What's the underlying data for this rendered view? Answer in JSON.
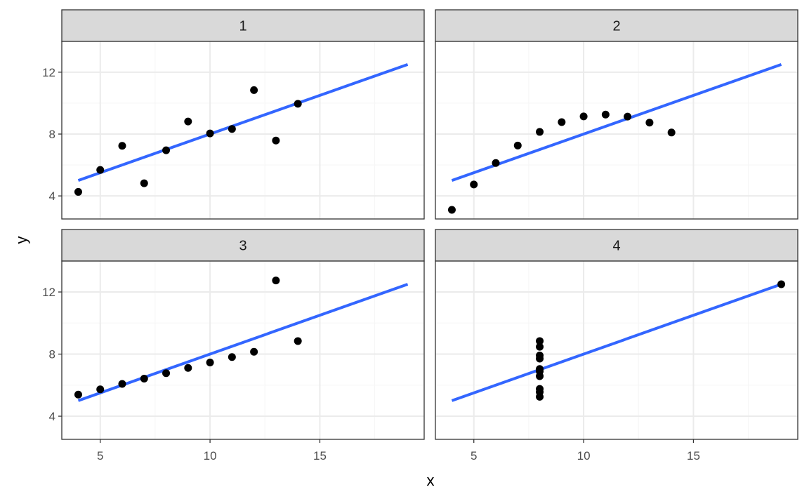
{
  "chart_data": {
    "type": "scatter",
    "layout": "facet-grid 2x2",
    "xlabel": "x",
    "ylabel": "y",
    "xlim": [
      3.25,
      19.75
    ],
    "ylim": [
      2.51,
      13.99
    ],
    "x_ticks": [
      5,
      10,
      15
    ],
    "y_ticks": [
      4,
      8,
      12
    ],
    "grid": true,
    "colors": {
      "points": "#000000",
      "fit_line": "#3366FF",
      "strip_bg": "#D9D9D9",
      "panel_border": "#333333",
      "grid_major": "#EBEBEB",
      "grid_minor": "#F5F5F5"
    },
    "panels": [
      {
        "strip": "1",
        "points": {
          "x": [
            10,
            8,
            13,
            9,
            11,
            14,
            6,
            4,
            12,
            7,
            5
          ],
          "y": [
            8.04,
            6.95,
            7.58,
            8.81,
            8.33,
            9.96,
            7.24,
            4.26,
            10.84,
            4.82,
            5.68
          ]
        },
        "fit": {
          "x": [
            4,
            19
          ],
          "y": [
            5.0,
            12.5
          ]
        }
      },
      {
        "strip": "2",
        "points": {
          "x": [
            10,
            8,
            13,
            9,
            11,
            14,
            6,
            4,
            12,
            7,
            5
          ],
          "y": [
            9.14,
            8.14,
            8.74,
            8.77,
            9.26,
            8.1,
            6.13,
            3.1,
            9.13,
            7.26,
            4.74
          ]
        },
        "fit": {
          "x": [
            4,
            19
          ],
          "y": [
            5.0,
            12.5
          ]
        }
      },
      {
        "strip": "3",
        "points": {
          "x": [
            10,
            8,
            13,
            9,
            11,
            14,
            6,
            4,
            12,
            7,
            5
          ],
          "y": [
            7.46,
            6.77,
            12.74,
            7.11,
            7.81,
            8.84,
            6.08,
            5.39,
            8.15,
            6.42,
            5.73
          ]
        },
        "fit": {
          "x": [
            4,
            19
          ],
          "y": [
            5.0,
            12.5
          ]
        }
      },
      {
        "strip": "4",
        "points": {
          "x": [
            8,
            8,
            8,
            8,
            8,
            8,
            8,
            19,
            8,
            8,
            8
          ],
          "y": [
            6.58,
            5.76,
            7.71,
            8.84,
            8.47,
            7.04,
            5.25,
            12.5,
            5.56,
            7.91,
            6.89
          ]
        },
        "fit": {
          "x": [
            4,
            19
          ],
          "y": [
            5.0,
            12.5
          ]
        }
      }
    ]
  }
}
